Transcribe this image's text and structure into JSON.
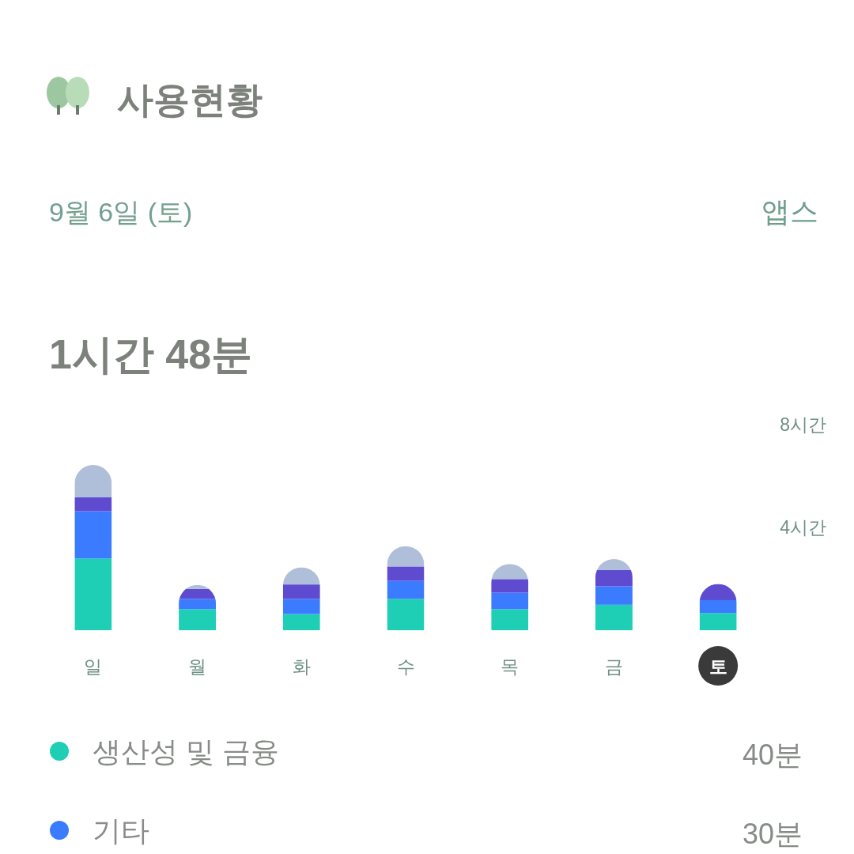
{
  "chart_data": {
    "type": "bar",
    "title": "사용현황",
    "subtitle": "9월 6일 (토)",
    "categories": [
      "일",
      "월",
      "화",
      "수",
      "목",
      "금",
      "토"
    ],
    "stacked": true,
    "series": [
      {
        "name": "생산성 및 금융",
        "color": "#1ecfb5",
        "values": [
          2.79,
          0.82,
          0.63,
          1.22,
          0.82,
          0.99,
          0.67
        ]
      },
      {
        "name": "기타",
        "color": "#3b7bff",
        "values": [
          1.84,
          0.4,
          0.59,
          0.7,
          0.64,
          0.72,
          0.5
        ]
      },
      {
        "color": "#5e4bd0",
        "values": [
          0.54,
          0.39,
          0.56,
          0.56,
          0.53,
          0.64,
          0.63
        ]
      },
      {
        "color": "#b0bfd9",
        "values": [
          1.26,
          0.15,
          0.67,
          0.79,
          0.59,
          0.42,
          0
        ]
      }
    ],
    "ylim": [
      0,
      8
    ],
    "yticks": [
      {
        "value": 4,
        "label": "4시간"
      },
      {
        "value": 8,
        "label": "8시간"
      }
    ],
    "legend": "bottom",
    "annotations": [
      "앱스",
      "1시간 48분",
      "40분",
      "30분"
    ]
  }
}
